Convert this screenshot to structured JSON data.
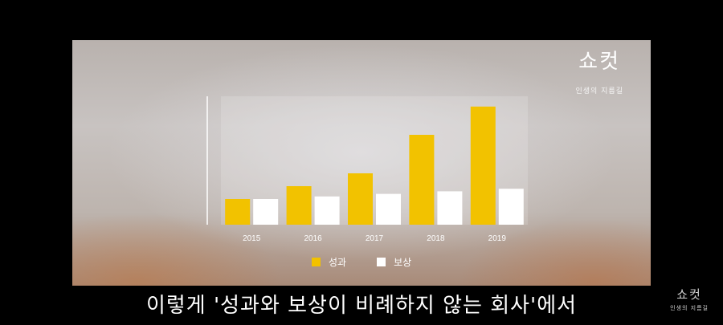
{
  "brand": {
    "title": "쇼컷",
    "subtitle": "인생의 지름길"
  },
  "chart_data": {
    "type": "bar",
    "categories": [
      "2015",
      "2016",
      "2017",
      "2018",
      "2019"
    ],
    "series": [
      {
        "name": "성과",
        "values": [
          2,
          3,
          4,
          7,
          9.2
        ]
      },
      {
        "name": "보상",
        "values": [
          2,
          2.2,
          2.4,
          2.6,
          2.8
        ]
      }
    ],
    "ylim": [
      0,
      10
    ],
    "grid": false,
    "legend_position": "bottom",
    "colors": [
      "#f2c200",
      "#ffffff"
    ]
  },
  "subtitle": "이렇게 '성과와 보상이 비례하지 않는 회사'에서",
  "watermark": {
    "title": "쇼컷",
    "subtitle": "인생의 지름길"
  }
}
